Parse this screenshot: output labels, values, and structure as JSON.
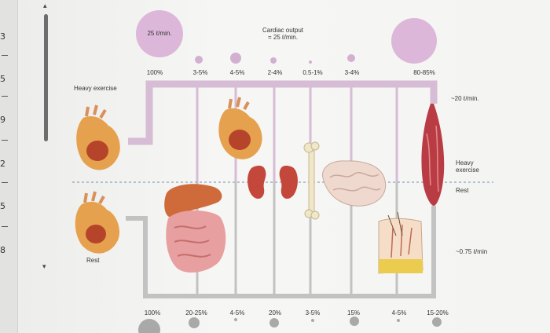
{
  "gutter": {
    "numbers": [
      "3",
      "5",
      "9",
      "2",
      "5",
      "8"
    ]
  },
  "labels": {
    "heavy_exercise": "Heavy exercise",
    "rest": "Rest",
    "total_flow_top": "25 ℓ/min.",
    "cardiac_output_line1": "Cardiac output",
    "cardiac_output_line2": "= 25 ℓ/min.",
    "muscle_flow_heavy": "~20 ℓ/min.",
    "muscle_flow_rest": "~0.75 ℓ/min",
    "legend_heavy_line1": "Heavy",
    "legend_heavy_line2": "exercise",
    "legend_rest": "Rest"
  },
  "percent_heavy": [
    "100%",
    "3-5%",
    "4-5%",
    "2-4%",
    "0.5-1%",
    "3-4%",
    "80-85%"
  ],
  "percent_rest": [
    "100%",
    "20-25%",
    "4-5%",
    "20%",
    "3-5%",
    "15%",
    "4-5%",
    "15-20%"
  ],
  "colors": {
    "heavy_pipe": "#d6b8d4",
    "rest_pipe": "#bdbdbd",
    "heavy_circle": "#d9b3d6",
    "rest_circle": "#a6a6a6",
    "heart": "#d97a3a",
    "kidney": "#c0463b",
    "muscle": "#b8383f"
  },
  "icons": {
    "heart": "heart-icon",
    "liver_intestine": "digestive-organs-icon",
    "kidneys": "kidneys-icon",
    "bone": "bone-icon",
    "brain": "brain-icon",
    "skin": "skin-icon",
    "muscle": "muscle-icon"
  }
}
